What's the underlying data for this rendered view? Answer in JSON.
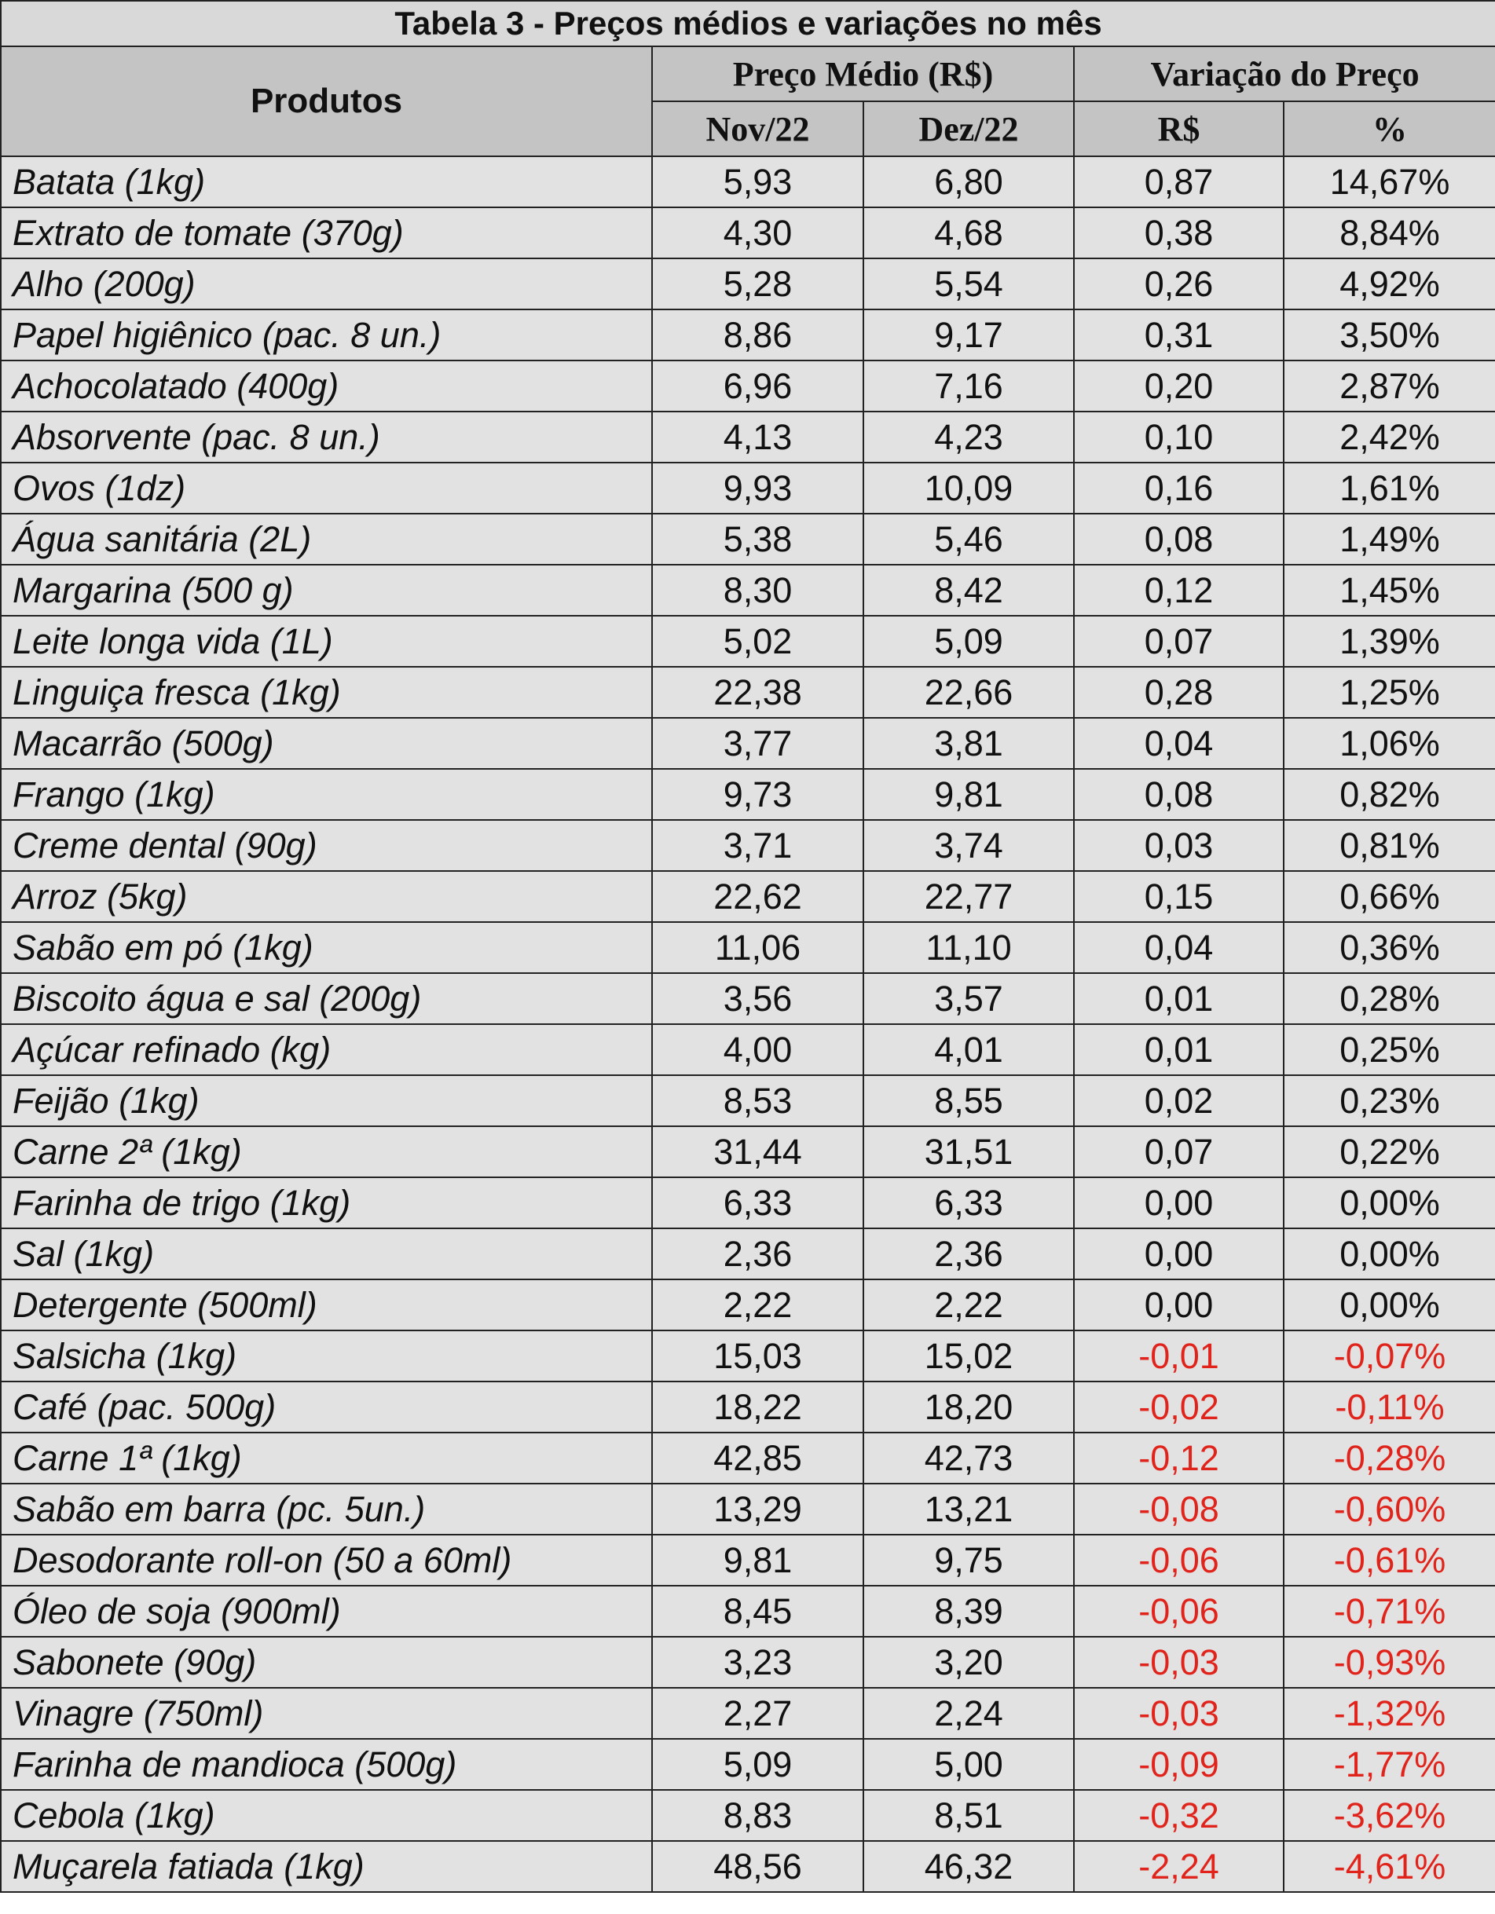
{
  "header": {
    "title": "Tabela 3 - Preços médios e variações no mês"
  },
  "table": {
    "product_header": "Produtos",
    "groups": [
      "Preço Médio (R$)",
      "Variação do Preço"
    ],
    "subheaders": [
      "Nov/22",
      "Dez/22",
      "R$",
      "%"
    ],
    "rows": [
      [
        "Batata (1kg)",
        "5,93",
        "6,80",
        "0,87",
        "14,67%"
      ],
      [
        "Extrato de tomate (370g)",
        "4,30",
        "4,68",
        "0,38",
        "8,84%"
      ],
      [
        "Alho (200g)",
        "5,28",
        "5,54",
        "0,26",
        "4,92%"
      ],
      [
        "Papel higiênico (pac. 8 un.)",
        "8,86",
        "9,17",
        "0,31",
        "3,50%"
      ],
      [
        "Achocolatado (400g)",
        "6,96",
        "7,16",
        "0,20",
        "2,87%"
      ],
      [
        "Absorvente (pac. 8 un.)",
        "4,13",
        "4,23",
        "0,10",
        "2,42%"
      ],
      [
        "Ovos (1dz)",
        "9,93",
        "10,09",
        "0,16",
        "1,61%"
      ],
      [
        "Água sanitária (2L)",
        "5,38",
        "5,46",
        "0,08",
        "1,49%"
      ],
      [
        "Margarina (500 g)",
        "8,30",
        "8,42",
        "0,12",
        "1,45%"
      ],
      [
        "Leite longa vida (1L)",
        "5,02",
        "5,09",
        "0,07",
        "1,39%"
      ],
      [
        "Linguiça fresca (1kg)",
        "22,38",
        "22,66",
        "0,28",
        "1,25%"
      ],
      [
        "Macarrão (500g)",
        "3,77",
        "3,81",
        "0,04",
        "1,06%"
      ],
      [
        "Frango (1kg)",
        "9,73",
        "9,81",
        "0,08",
        "0,82%"
      ],
      [
        "Creme dental (90g)",
        "3,71",
        "3,74",
        "0,03",
        "0,81%"
      ],
      [
        "Arroz (5kg)",
        "22,62",
        "22,77",
        "0,15",
        "0,66%"
      ],
      [
        "Sabão em pó (1kg)",
        "11,06",
        "11,10",
        "0,04",
        "0,36%"
      ],
      [
        "Biscoito água e sal (200g)",
        "3,56",
        "3,57",
        "0,01",
        "0,28%"
      ],
      [
        "Açúcar refinado (kg)",
        "4,00",
        "4,01",
        "0,01",
        "0,25%"
      ],
      [
        "Feijão (1kg)",
        "8,53",
        "8,55",
        "0,02",
        "0,23%"
      ],
      [
        "Carne 2ª (1kg)",
        "31,44",
        "31,51",
        "0,07",
        "0,22%"
      ],
      [
        "Farinha de trigo (1kg)",
        "6,33",
        "6,33",
        "0,00",
        "0,00%"
      ],
      [
        "Sal (1kg)",
        "2,36",
        "2,36",
        "0,00",
        "0,00%"
      ],
      [
        "Detergente (500ml)",
        "2,22",
        "2,22",
        "0,00",
        "0,00%"
      ],
      [
        "Salsicha (1kg)",
        "15,03",
        "15,02",
        "-0,01",
        "-0,07%"
      ],
      [
        "Café (pac. 500g)",
        "18,22",
        "18,20",
        "-0,02",
        "-0,11%"
      ],
      [
        "Carne 1ª (1kg)",
        "42,85",
        "42,73",
        "-0,12",
        "-0,28%"
      ],
      [
        "Sabão em barra (pc. 5un.)",
        "13,29",
        "13,21",
        "-0,08",
        "-0,60%"
      ],
      [
        "Desodorante roll-on (50 a 60ml)",
        "9,81",
        "9,75",
        "-0,06",
        "-0,61%"
      ],
      [
        "Óleo de soja (900ml)",
        "8,45",
        "8,39",
        "-0,06",
        "-0,71%"
      ],
      [
        "Sabonete (90g)",
        "3,23",
        "3,20",
        "-0,03",
        "-0,93%"
      ],
      [
        "Vinagre (750ml)",
        "2,27",
        "2,24",
        "-0,03",
        "-1,32%"
      ],
      [
        "Farinha de mandioca (500g)",
        "5,09",
        "5,00",
        "-0,09",
        "-1,77%"
      ],
      [
        "Cebola (1kg)",
        "8,83",
        "8,51",
        "-0,32",
        "-3,62%"
      ],
      [
        "Muçarela fatiada (1kg)",
        "48,56",
        "46,32",
        "-2,24",
        "-4,61%"
      ]
    ]
  }
}
